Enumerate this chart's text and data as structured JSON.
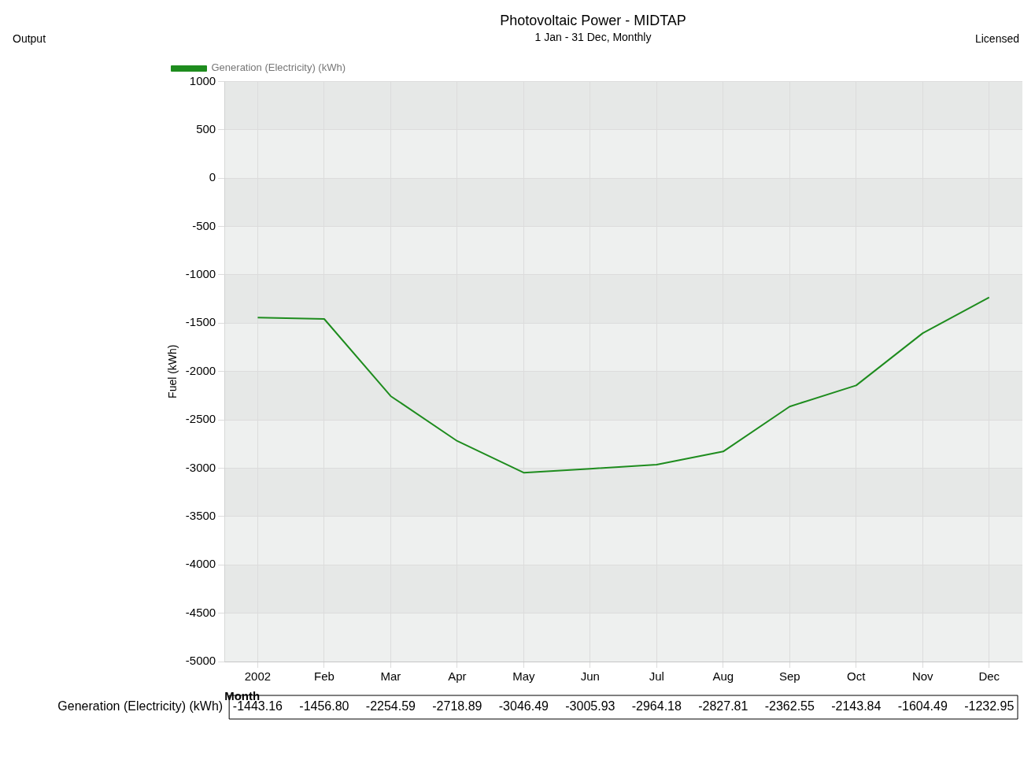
{
  "chart_data": {
    "type": "line",
    "title": "Photovoltaic Power - MIDTAP",
    "subtitle": "1 Jan - 31 Dec, Monthly",
    "annotations": [
      "Output",
      "Licensed"
    ],
    "xlabel": "Month",
    "ylabel": "Fuel (kWh)",
    "categories": [
      "2002",
      "Feb",
      "Mar",
      "Apr",
      "May",
      "Jun",
      "Jul",
      "Aug",
      "Sep",
      "Oct",
      "Nov",
      "Dec"
    ],
    "series": [
      {
        "name": "Generation (Electricity) (kWh)",
        "color": "#1e8c1e",
        "values": [
          -1443.16,
          -1456.8,
          -2254.59,
          -2718.89,
          -3046.49,
          -3005.93,
          -2964.18,
          -2827.81,
          -2362.55,
          -2143.84,
          -1604.49,
          -1232.95
        ],
        "value_labels": [
          "-1443.16",
          "-1456.80",
          "-2254.59",
          "-2718.89",
          "-3046.49",
          "-3005.93",
          "-2964.18",
          "-2827.81",
          "-2362.55",
          "-2143.84",
          "-1604.49",
          "-1232.95"
        ]
      }
    ],
    "ylim": [
      -5000,
      1000
    ],
    "yticks": [
      -5000,
      -4500,
      -4000,
      -3500,
      -3000,
      -2500,
      -2000,
      -1500,
      -1000,
      -500,
      0,
      500,
      1000
    ],
    "grid": true,
    "legend": "top left",
    "marker": "none"
  }
}
